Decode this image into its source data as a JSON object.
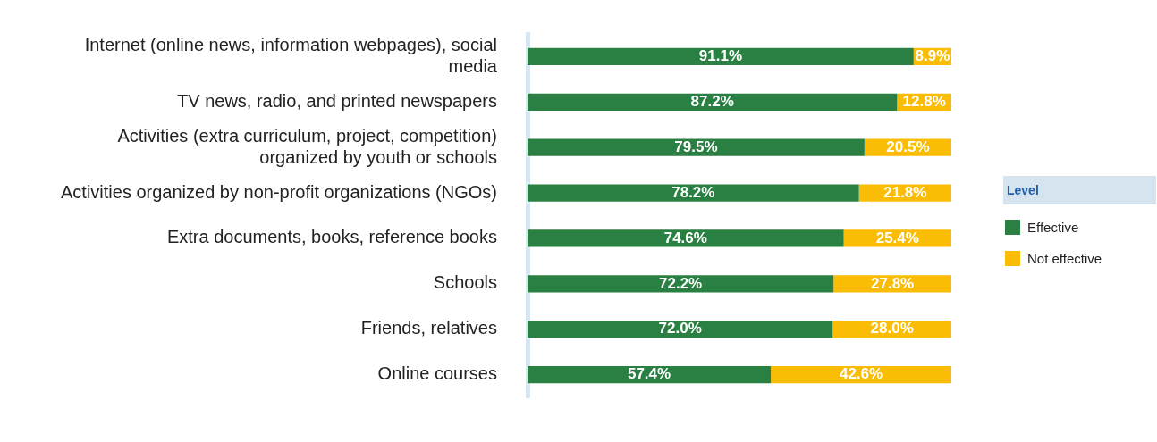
{
  "chart_data": {
    "type": "bar",
    "orientation": "horizontal",
    "stacked": true,
    "legend": "right",
    "legend_title": "Level",
    "categories": [
      "Internet (online news, information webpages), social media",
      "TV news, radio, and printed newspapers",
      "Activities (extra curriculum, project, competition) organized by youth or schools",
      "Activities organized by non-profit organizations (NGOs)",
      "Extra documents, books, reference books",
      "Schools",
      "Friends, relatives",
      "Online courses"
    ],
    "series": [
      {
        "name": "Effective",
        "color": "#2a7f42",
        "values": [
          91.1,
          87.2,
          79.5,
          78.2,
          74.6,
          72.2,
          72.0,
          57.4
        ],
        "value_labels": [
          "91.1%",
          "87.2%",
          "79.5%",
          "78.2%",
          "74.6%",
          "72.2%",
          "72.0%",
          "57.4%"
        ]
      },
      {
        "name": "Not effective",
        "color": "#fbbc05",
        "values": [
          8.9,
          12.8,
          20.5,
          21.8,
          25.4,
          27.8,
          28.0,
          42.6
        ],
        "value_labels": [
          "8.9%",
          "12.8%",
          "20.5%",
          "21.8%",
          "25.4%",
          "27.8%",
          "28.0%",
          "42.6%"
        ]
      }
    ]
  }
}
